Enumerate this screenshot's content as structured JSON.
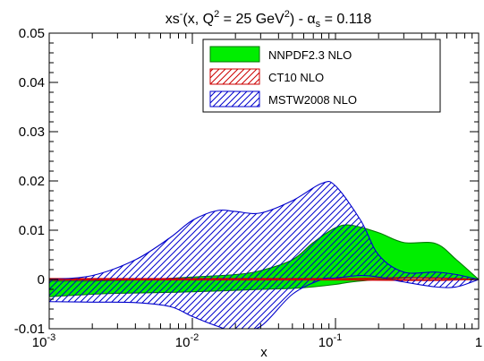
{
  "chart_data": {
    "type": "area",
    "title": {
      "lead": "xs",
      "lead_sup": "-",
      "mid": "(x, Q",
      "mid_sup": "2",
      "unit": " = 25 GeV",
      "unit_sup": "2",
      "alpha": ") - α",
      "alpha_sub": "s",
      "tail": " = 0.118"
    },
    "xlabel": "x",
    "ylabel": "",
    "x_scale": "log",
    "xlim": [
      0.001,
      1
    ],
    "ylim": [
      -0.01,
      0.05
    ],
    "x_ticks": [
      {
        "value": 0.001,
        "base": "10",
        "exp": "-3"
      },
      {
        "value": 0.01,
        "base": "10",
        "exp": "-2"
      },
      {
        "value": 0.1,
        "base": "10",
        "exp": "-1"
      },
      {
        "value": 1,
        "label": "1"
      }
    ],
    "y_ticks": [
      {
        "value": -0.01,
        "label": "-0.01"
      },
      {
        "value": 0,
        "label": "0"
      },
      {
        "value": 0.01,
        "label": "0.01"
      },
      {
        "value": 0.02,
        "label": "0.02"
      },
      {
        "value": 0.03,
        "label": "0.03"
      },
      {
        "value": 0.04,
        "label": "0.04"
      },
      {
        "value": 0.05,
        "label": "0.05"
      }
    ],
    "legend_position": "top-right",
    "series": [
      {
        "name": "NNPDF2.3 NLO",
        "style": "solid-fill",
        "fill_color": "#00ee00",
        "edge_color": "#007700",
        "x": [
          0.001,
          0.002,
          0.003,
          0.005,
          0.01,
          0.02,
          0.03,
          0.05,
          0.07,
          0.1,
          0.13,
          0.2,
          0.3,
          0.5,
          0.7,
          1.0
        ],
        "upper": [
          -0.0003,
          -0.0003,
          -0.0002,
          0.0,
          0.0005,
          0.001,
          0.0018,
          0.004,
          0.0075,
          0.0105,
          0.011,
          0.0095,
          0.0075,
          0.0073,
          0.004,
          0.0
        ],
        "lower": [
          -0.0035,
          -0.003,
          -0.0028,
          -0.0027,
          -0.0025,
          -0.0022,
          -0.002,
          -0.0018,
          -0.0015,
          -0.001,
          -0.0005,
          0.0,
          0.0003,
          0.0003,
          0.0002,
          0.0
        ]
      },
      {
        "name": "CT10 NLO",
        "style": "hatch-red",
        "fill_color": "#cc0000",
        "edge_color": "#cc0000",
        "x": [
          0.001,
          0.01,
          0.1,
          0.3,
          0.5,
          0.7,
          1.0
        ],
        "upper": [
          0.0002,
          0.0002,
          0.0002,
          0.0004,
          0.0003,
          0.0002,
          0.0
        ],
        "lower": [
          -0.0001,
          -0.0001,
          -0.0001,
          -0.0002,
          -0.0002,
          -0.0001,
          0.0
        ]
      },
      {
        "name": "MSTW2008 NLO",
        "style": "hatch-blue",
        "fill_color": "#0000cc",
        "edge_color": "#0000cc",
        "x": [
          0.001,
          0.002,
          0.004,
          0.007,
          0.01,
          0.015,
          0.02,
          0.03,
          0.05,
          0.08,
          0.1,
          0.15,
          0.2,
          0.3,
          0.5,
          0.7,
          1.0
        ],
        "upper": [
          0.0,
          0.0008,
          0.004,
          0.0085,
          0.012,
          0.014,
          0.0138,
          0.0135,
          0.016,
          0.0195,
          0.019,
          0.012,
          0.005,
          0.0015,
          0.0015,
          0.001,
          0.0
        ],
        "lower": [
          -0.0045,
          -0.0046,
          -0.0047,
          -0.0055,
          -0.0075,
          -0.0095,
          -0.0105,
          -0.0095,
          -0.003,
          0.0,
          0.0003,
          0.0008,
          0.0005,
          -0.0005,
          -0.0015,
          -0.0015,
          0.0
        ]
      }
    ]
  }
}
